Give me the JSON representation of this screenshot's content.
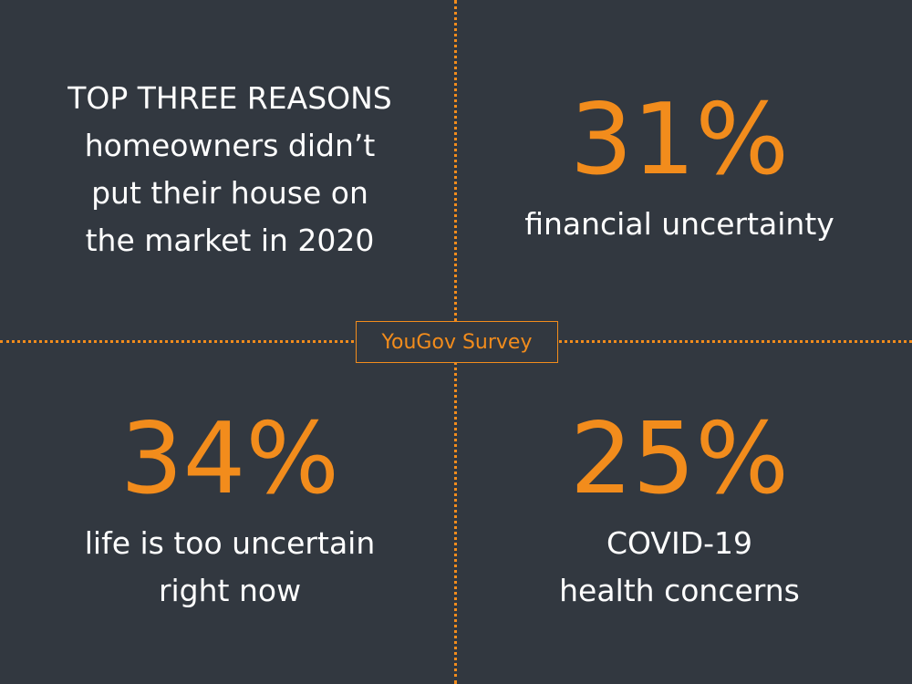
{
  "title": {
    "lines": [
      "TOP THREE REASONS",
      "homeowners didn’t",
      "put their house on",
      "the market in 2020"
    ]
  },
  "badge": "YouGov Survey",
  "stats": [
    {
      "value": "31%",
      "lines": [
        "financial uncertainty"
      ]
    },
    {
      "value": "34%",
      "lines": [
        "life is too uncertain",
        "right now"
      ]
    },
    {
      "value": "25%",
      "lines": [
        "COVID-19",
        "health concerns"
      ]
    }
  ]
}
